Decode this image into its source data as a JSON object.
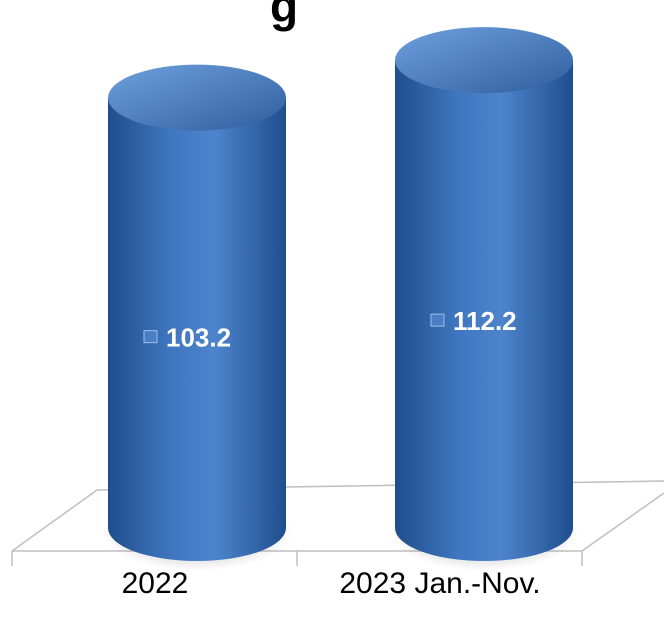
{
  "title_fragment": "g",
  "chart_data": {
    "type": "bar",
    "style": "3d-cylinder",
    "categories": [
      "2022",
      "2023 Jan.-Nov."
    ],
    "values": [
      103.2,
      112.2
    ],
    "data_labels": [
      "103.2",
      "112.2"
    ],
    "title": "",
    "xlabel": "",
    "ylabel": "",
    "grid": false,
    "legend": "none",
    "colors": {
      "cylinder_dark": "#1F4E8C",
      "cylinder_mid": "#3F76BF",
      "cylinder_light": "#6FA0DE",
      "floor_line": "#BFBFBF",
      "label_marker": "#4A7EC4"
    }
  }
}
